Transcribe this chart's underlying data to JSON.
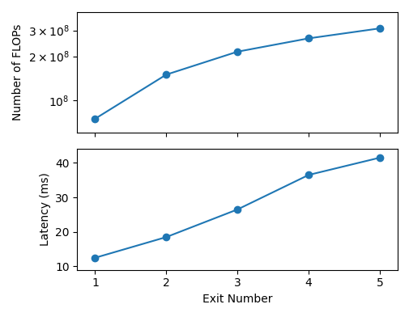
{
  "exit_numbers": [
    1,
    2,
    3,
    4,
    5
  ],
  "flops": [
    75000000.0,
    150000000.0,
    215000000.0,
    265000000.0,
    310000000.0
  ],
  "latency": [
    12.5,
    18.5,
    26.5,
    36.5,
    41.5
  ],
  "flops_ylabel": "Number of FLOPs",
  "latency_ylabel": "Latency (ms)",
  "xlabel": "Exit Number",
  "line_color": "#1f77b4",
  "marker": "o",
  "markersize": 6,
  "linewidth": 1.5,
  "figsize": [
    5.06,
    3.92
  ],
  "dpi": 100,
  "flops_ylim": [
    60000000.0,
    400000000.0
  ],
  "flops_yticks": [
    100000000.0,
    200000000.0,
    300000000.0
  ],
  "flops_yticklabels": [
    "$10^8$",
    "$2 \\times 10^8$",
    "$3 \\times 10^8$"
  ],
  "latency_ylim": [
    9,
    44
  ],
  "latency_yticks": [
    10,
    20,
    30,
    40
  ],
  "xlim": [
    0.75,
    5.25
  ]
}
